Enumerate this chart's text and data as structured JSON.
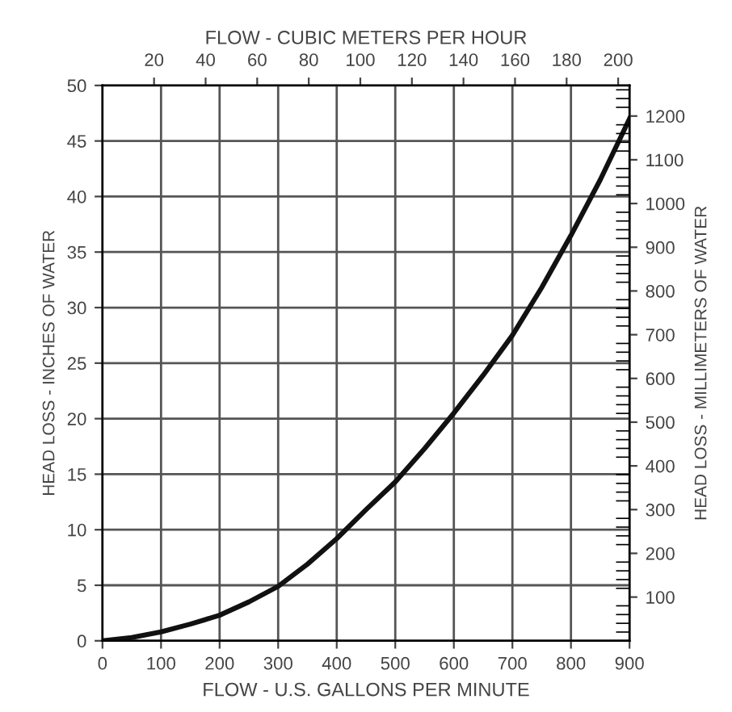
{
  "chart_data": {
    "type": "line",
    "xlabel": "FLOW - U.S. GALLONS PER MINUTE",
    "x2label": "FLOW - CUBIC METERS PER HOUR",
    "ylabel": "HEAD LOSS - INCHES OF WATER",
    "y2label": "HEAD LOSS - MILLIMETERS OF WATER",
    "x": [
      0,
      50,
      100,
      150,
      200,
      250,
      300,
      350,
      400,
      450,
      500,
      550,
      600,
      650,
      700,
      750,
      800,
      850,
      900
    ],
    "series": [
      {
        "color": "#111111",
        "values": [
          0,
          0.3,
          0.8,
          1.5,
          2.3,
          3.5,
          4.9,
          6.9,
          9.2,
          11.8,
          14.3,
          17.3,
          20.5,
          23.9,
          27.5,
          31.8,
          36.5,
          41.5,
          47
        ]
      }
    ],
    "xlim": [
      0,
      900
    ],
    "xticks": [
      0,
      100,
      200,
      300,
      400,
      500,
      600,
      700,
      800,
      900
    ],
    "ylim": [
      0,
      50
    ],
    "yticks": [
      0,
      5,
      10,
      15,
      20,
      25,
      30,
      35,
      40,
      45,
      50
    ],
    "x2lim": [
      0,
      204.4
    ],
    "x2ticks": [
      20,
      40,
      60,
      80,
      100,
      120,
      140,
      160,
      180,
      200
    ],
    "y2lim": [
      0,
      1270
    ],
    "y2ticks": [
      100,
      200,
      300,
      400,
      500,
      600,
      700,
      800,
      900,
      1000,
      1100,
      1200
    ],
    "grid": true,
    "legend": false,
    "marker": "none",
    "line_style": "solid"
  }
}
